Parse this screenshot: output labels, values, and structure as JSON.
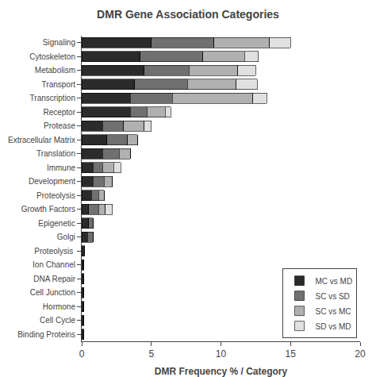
{
  "chart_data": {
    "type": "bar",
    "orientation": "horizontal",
    "stacked": true,
    "title": "DMR Gene Association Categories",
    "xlabel": "DMR Frequency % / Category",
    "categories": [
      "Signaling",
      "Cytoskeleton",
      "Metabolism",
      "Transport",
      "Transcription",
      "Receptor",
      "Protease",
      "Extracellular Matrix",
      "Translation",
      "Immune",
      "Development",
      "Proteolysis",
      "Growth Factors",
      "Epigenetic",
      "Golgi",
      "Proteolysis ",
      "Ion Channel",
      "DNA Repair",
      "Cell Junction",
      "Hormone",
      "Cell Cycle",
      "Binding Proteins"
    ],
    "series": [
      {
        "name": "MC vs MD",
        "color": "#2b2b2b",
        "values": [
          5.0,
          4.2,
          4.5,
          3.8,
          3.5,
          3.5,
          1.5,
          1.8,
          1.5,
          0.8,
          0.8,
          0.7,
          0.5,
          0.5,
          0.4,
          0.2,
          0.15,
          0.15,
          0.15,
          0.15,
          0.15,
          0.15
        ]
      },
      {
        "name": "SC vs SD",
        "color": "#707070",
        "values": [
          4.5,
          4.5,
          3.2,
          3.8,
          3.0,
          1.2,
          1.5,
          1.5,
          1.2,
          0.7,
          0.8,
          0.5,
          0.7,
          0.3,
          0.4,
          0.0,
          0.0,
          0.0,
          0.0,
          0.0,
          0.0,
          0.0
        ]
      },
      {
        "name": "SC vs MC",
        "color": "#b0b0b0",
        "values": [
          4.0,
          3.0,
          3.5,
          3.5,
          5.8,
          1.3,
          1.5,
          0.7,
          0.8,
          0.8,
          0.6,
          0.4,
          0.5,
          0.0,
          0.0,
          0.0,
          0.0,
          0.0,
          0.0,
          0.0,
          0.0,
          0.0
        ]
      },
      {
        "name": "SD vs MD",
        "color": "#e0e0e0",
        "values": [
          1.5,
          1.0,
          1.3,
          1.5,
          1.0,
          0.4,
          0.5,
          0.0,
          0.0,
          0.5,
          0.0,
          0.0,
          0.5,
          0.0,
          0.0,
          0.0,
          0.0,
          0.0,
          0.0,
          0.0,
          0.0,
          0.0
        ]
      }
    ],
    "xlim": [
      0,
      20
    ],
    "xticks": [
      0,
      5,
      10,
      15,
      20
    ],
    "grid": false,
    "legend": "lower right"
  }
}
